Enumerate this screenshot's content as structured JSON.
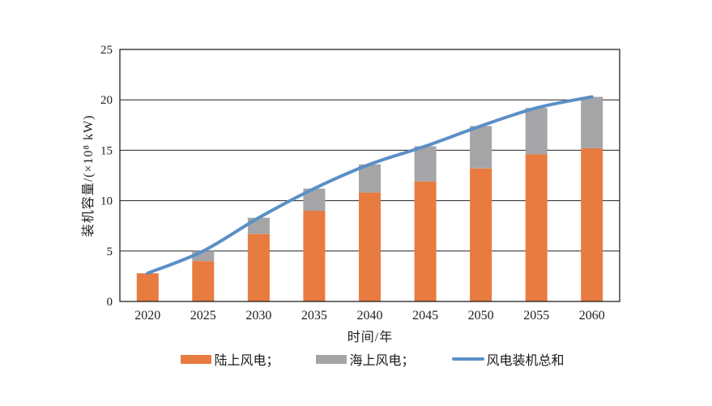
{
  "chart_data": {
    "type": "bar",
    "subtype": "stacked-bar-with-total-line",
    "title": "",
    "categories": [
      "2020",
      "2025",
      "2030",
      "2035",
      "2040",
      "2045",
      "2050",
      "2055",
      "2060"
    ],
    "series": [
      {
        "name": "陆上风电",
        "kind": "bar",
        "color": "#E87B40",
        "values": [
          2.8,
          4.0,
          6.7,
          9.0,
          10.8,
          11.9,
          13.2,
          14.6,
          15.2
        ]
      },
      {
        "name": "海上风电",
        "kind": "bar",
        "color": "#A5A5A8",
        "values": [
          0,
          1.0,
          1.6,
          2.2,
          2.8,
          3.5,
          4.2,
          4.6,
          5.1
        ]
      },
      {
        "name": "风电装机总和",
        "kind": "line",
        "color": "#5B8FC6",
        "values": [
          2.8,
          5.0,
          8.3,
          11.2,
          13.6,
          15.4,
          17.4,
          19.2,
          20.3
        ]
      }
    ],
    "xlabel": "时间/年",
    "ylabel": "装机容量/(×10⁸ kW)",
    "ylim": [
      0,
      25
    ],
    "yticks": [
      0,
      5,
      10,
      15,
      20,
      25
    ],
    "grid": true,
    "legend_position": "bottom",
    "axis_color": "#222222",
    "tick_text_color": "#1f1f1f",
    "background": "#ffffff"
  },
  "legend": {
    "items": [
      {
        "label": "陆上风电；"
      },
      {
        "label": "海上风电；"
      },
      {
        "label": "风电装机总和"
      }
    ]
  }
}
